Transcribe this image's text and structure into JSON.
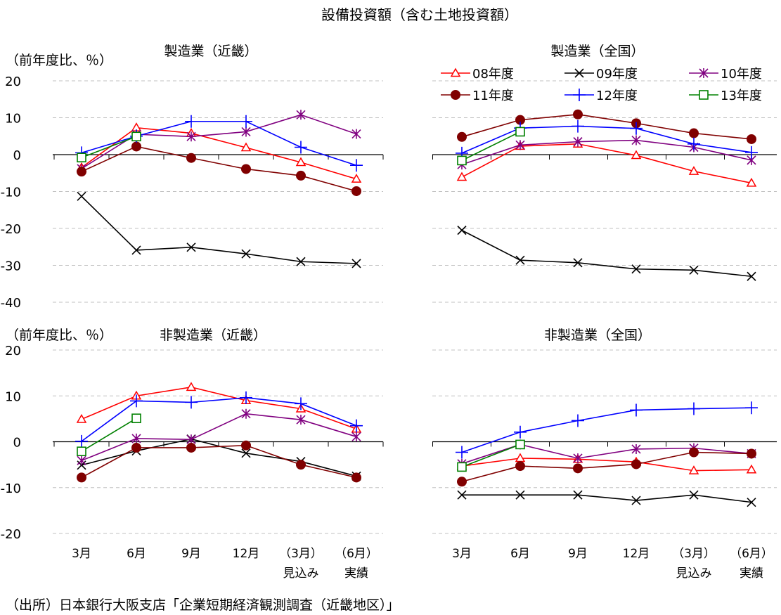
{
  "title": "設備投資額（含む土地投資額）",
  "source": "（出所）日本銀行大阪支店「企業短期経済観測調査（近畿地区）」",
  "ylabel": "（前年度比、％）",
  "x_categories": [
    "3月",
    "6月",
    "9月",
    "12月",
    "（3月）",
    "（6月）"
  ],
  "x_sublabels": [
    "",
    "",
    "",
    "",
    "見込み",
    "実績"
  ],
  "legend": [
    "08年度",
    "09年度",
    "10年度",
    "11年度",
    "12年度",
    "13年度"
  ],
  "colors": {
    "08年度": "#ff0000",
    "09年度": "#000000",
    "10年度": "#800080",
    "11年度": "#800000",
    "12年度": "#0000ff",
    "13年度": "#008000"
  },
  "markers": {
    "08年度": "triangle",
    "09年度": "x",
    "10年度": "asterisk",
    "11年度": "circle",
    "12年度": "plus",
    "13年度": "square"
  },
  "chart_data": [
    {
      "type": "line",
      "title": "製造業（近畿）",
      "ylabel": "（前年度比、％）",
      "ylim": [
        -40,
        20
      ],
      "yticks": [
        20,
        10,
        0,
        -10,
        -20,
        -30,
        -40
      ],
      "categories": [
        "3月",
        "6月",
        "9月",
        "12月",
        "（3月）見込み",
        "（6月）実績"
      ],
      "grid": true,
      "series": [
        {
          "name": "08年度",
          "values": [
            -3.5,
            7.3,
            5.8,
            1.9,
            -2.1,
            -6.6
          ]
        },
        {
          "name": "09年度",
          "values": [
            -11.3,
            -25.9,
            -25.1,
            -26.9,
            -29.0,
            -29.5
          ]
        },
        {
          "name": "10年度",
          "values": [
            -3.8,
            5.5,
            4.9,
            6.2,
            10.8,
            5.6
          ]
        },
        {
          "name": "11年度",
          "values": [
            -4.6,
            2.2,
            -0.9,
            -3.9,
            -5.7,
            -9.9
          ]
        },
        {
          "name": "12年度",
          "values": [
            0.5,
            5.0,
            9.0,
            9.0,
            2.0,
            -2.9
          ]
        },
        {
          "name": "13年度",
          "values": [
            -0.8,
            4.9,
            null,
            null,
            null,
            null
          ]
        }
      ]
    },
    {
      "type": "line",
      "title": "製造業（全国）",
      "ylim": [
        -40,
        20
      ],
      "yticks": [
        20,
        10,
        0,
        -10,
        -20,
        -30,
        -40
      ],
      "categories": [
        "3月",
        "6月",
        "9月",
        "12月",
        "（3月）見込み",
        "（6月）実績"
      ],
      "grid": true,
      "legend_position": "top-right",
      "series": [
        {
          "name": "08年度",
          "values": [
            -6.1,
            2.3,
            2.9,
            -0.2,
            -4.5,
            -7.7
          ]
        },
        {
          "name": "09年度",
          "values": [
            -20.5,
            -28.6,
            -29.3,
            -31.0,
            -31.3,
            -33.0
          ]
        },
        {
          "name": "10年度",
          "values": [
            -2.7,
            2.6,
            3.5,
            3.9,
            2.0,
            -1.5
          ]
        },
        {
          "name": "11年度",
          "values": [
            4.8,
            9.4,
            10.9,
            8.5,
            5.8,
            4.2
          ]
        },
        {
          "name": "12年度",
          "values": [
            0.4,
            7.2,
            7.7,
            7.1,
            2.9,
            0.6
          ]
        },
        {
          "name": "13年度",
          "values": [
            -1.6,
            6.2,
            null,
            null,
            null,
            null
          ]
        }
      ]
    },
    {
      "type": "line",
      "title": "非製造業（近畿）",
      "ylabel": "（前年度比、％）",
      "ylim": [
        -20,
        20
      ],
      "yticks": [
        20,
        10,
        0,
        -10,
        -20
      ],
      "categories": [
        "3月",
        "6月",
        "9月",
        "12月",
        "（3月）見込み",
        "（6月）実績"
      ],
      "grid": true,
      "series": [
        {
          "name": "08年度",
          "values": [
            4.9,
            10.0,
            11.9,
            9.0,
            7.2,
            2.8
          ]
        },
        {
          "name": "09年度",
          "values": [
            -5.1,
            -2.0,
            0.6,
            -2.5,
            -4.3,
            -7.5
          ]
        },
        {
          "name": "10年度",
          "values": [
            -4.1,
            0.7,
            0.5,
            6.1,
            4.8,
            1.1
          ]
        },
        {
          "name": "11年度",
          "values": [
            -7.8,
            -1.3,
            -1.3,
            -0.8,
            -5.0,
            -7.8
          ]
        },
        {
          "name": "12年度",
          "values": [
            0.1,
            8.9,
            8.6,
            9.6,
            8.3,
            3.5
          ]
        },
        {
          "name": "13年度",
          "values": [
            -2.1,
            5.1,
            null,
            null,
            null,
            null
          ]
        }
      ]
    },
    {
      "type": "line",
      "title": "非製造業（全国）",
      "ylim": [
        -20,
        20
      ],
      "yticks": [
        20,
        10,
        0,
        -10,
        -20
      ],
      "categories": [
        "3月",
        "6月",
        "9月",
        "12月",
        "（3月）見込み",
        "（6月）実績"
      ],
      "grid": true,
      "series": [
        {
          "name": "08年度",
          "values": [
            -5.3,
            -3.6,
            -3.8,
            -4.4,
            -6.3,
            -6.1
          ]
        },
        {
          "name": "09年度",
          "values": [
            -11.6,
            -11.6,
            -11.6,
            -12.8,
            -11.6,
            -13.2
          ]
        },
        {
          "name": "10年度",
          "values": [
            -4.8,
            -0.6,
            -3.6,
            -1.6,
            -1.4,
            -2.6
          ]
        },
        {
          "name": "11年度",
          "values": [
            -8.7,
            -5.3,
            -5.8,
            -4.9,
            -2.3,
            -2.6
          ]
        },
        {
          "name": "12年度",
          "values": [
            -2.3,
            2.1,
            4.6,
            6.9,
            7.2,
            7.4
          ]
        },
        {
          "name": "13年度",
          "values": [
            -5.5,
            -0.6,
            null,
            null,
            null,
            null
          ]
        }
      ]
    }
  ]
}
